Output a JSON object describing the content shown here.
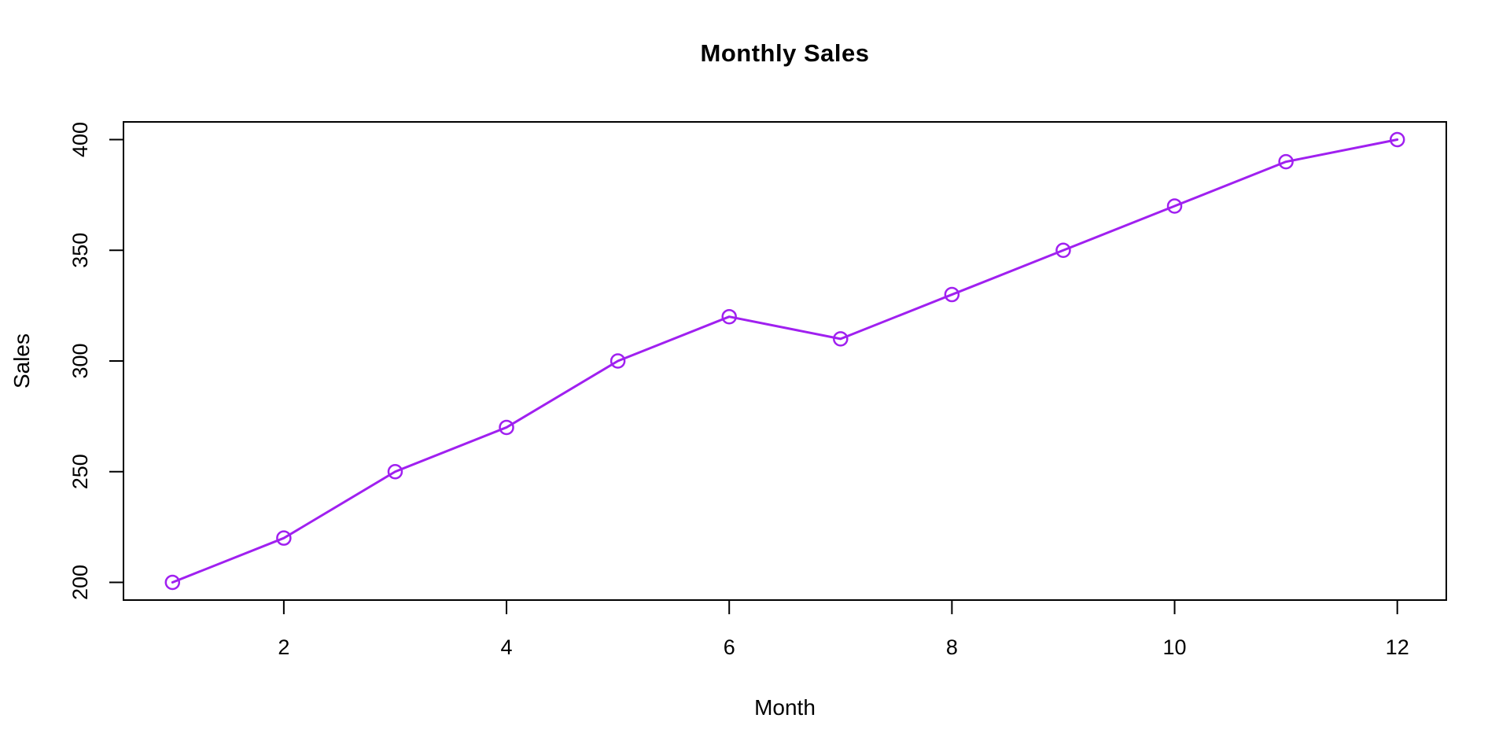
{
  "page": {
    "background_color": "#ffffff"
  },
  "chart_data": {
    "type": "line",
    "title": "Monthly Sales",
    "xlabel": "Month",
    "ylabel": "Sales",
    "x": [
      1,
      2,
      3,
      4,
      5,
      6,
      7,
      8,
      9,
      10,
      11,
      12
    ],
    "series": [
      {
        "name": "Sales",
        "values": [
          200,
          220,
          250,
          270,
          300,
          320,
          310,
          330,
          350,
          370,
          390,
          400
        ],
        "color": "#A020F0",
        "marker": "open-circle",
        "line_width": 3,
        "marker_radius": 8.5,
        "marker_stroke_width": 2.5
      }
    ],
    "xticks": [
      2,
      4,
      6,
      8,
      10,
      12
    ],
    "yticks": [
      200,
      250,
      300,
      350,
      400
    ],
    "xlim": [
      0.56,
      12.44
    ],
    "ylim": [
      192,
      408
    ],
    "grid": false,
    "legend": "none",
    "frame": true,
    "axis_color": "#000000",
    "tick_label_color": "#000000"
  }
}
